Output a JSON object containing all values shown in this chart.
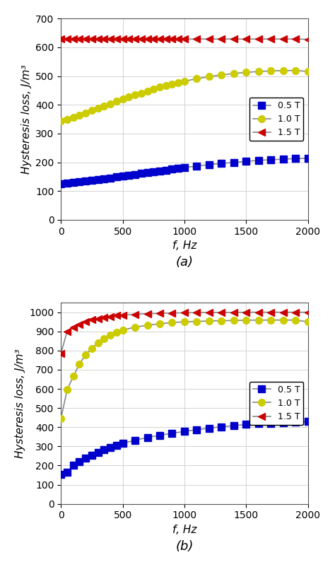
{
  "subplot_a": {
    "title": "(a)",
    "ylabel": "Hysteresis loss, J/m³",
    "xlabel": "f, Hz",
    "ylim": [
      0,
      700
    ],
    "xlim": [
      0,
      2000
    ],
    "yticks": [
      0,
      100,
      200,
      300,
      400,
      500,
      600,
      700
    ],
    "xticks": [
      0,
      500,
      1000,
      1500,
      2000
    ],
    "series": [
      {
        "label": "0.5 T",
        "color": "#0000cc",
        "marker": "s",
        "x": [
          0,
          50,
          100,
          150,
          200,
          250,
          300,
          350,
          400,
          450,
          500,
          550,
          600,
          650,
          700,
          750,
          800,
          850,
          900,
          950,
          1000,
          1100,
          1200,
          1300,
          1400,
          1500,
          1600,
          1700,
          1800,
          1900,
          2000
        ],
        "y": [
          125,
          128,
          130,
          132,
          135,
          137,
          140,
          143,
          146,
          149,
          152,
          155,
          158,
          161,
          164,
          167,
          170,
          173,
          176,
          179,
          182,
          187,
          192,
          196,
          200,
          203,
          207,
          209,
          211,
          213,
          214
        ]
      },
      {
        "label": "1.0 T",
        "color": "#cccc00",
        "marker": "o",
        "x": [
          0,
          50,
          100,
          150,
          200,
          250,
          300,
          350,
          400,
          450,
          500,
          550,
          600,
          650,
          700,
          750,
          800,
          850,
          900,
          950,
          1000,
          1100,
          1200,
          1300,
          1400,
          1500,
          1600,
          1700,
          1800,
          1900,
          2000
        ],
        "y": [
          345,
          350,
          357,
          364,
          372,
          380,
          388,
          396,
          404,
          412,
          420,
          427,
          434,
          441,
          448,
          455,
          461,
          467,
          472,
          477,
          482,
          491,
          498,
          504,
          509,
          513,
          516,
          518,
          519,
          520,
          516
        ]
      },
      {
        "label": "1.5 T",
        "color": "#cc0000",
        "marker": "<",
        "x": [
          0,
          50,
          100,
          150,
          200,
          250,
          300,
          350,
          400,
          450,
          500,
          550,
          600,
          650,
          700,
          750,
          800,
          850,
          900,
          950,
          1000,
          1100,
          1200,
          1300,
          1400,
          1500,
          1600,
          1700,
          1800,
          1900,
          2000
        ],
        "y": [
          630,
          630,
          630,
          629,
          629,
          629,
          629,
          629,
          629,
          629,
          629,
          629,
          629,
          629,
          629,
          629,
          629,
          629,
          629,
          629,
          629,
          629,
          629,
          629,
          629,
          629,
          629,
          629,
          629,
          629,
          628
        ]
      }
    ]
  },
  "subplot_b": {
    "title": "(b)",
    "ylabel": "Hysteresis loss, J/m³",
    "xlabel": "f, Hz",
    "ylim": [
      0,
      1050
    ],
    "xlim": [
      0,
      2000
    ],
    "yticks": [
      0,
      100,
      200,
      300,
      400,
      500,
      600,
      700,
      800,
      900,
      1000
    ],
    "xticks": [
      0,
      500,
      1000,
      1500,
      2000
    ],
    "series": [
      {
        "label": "0.5 T",
        "color": "#0000cc",
        "marker": "s",
        "x": [
          0,
          50,
          100,
          150,
          200,
          250,
          300,
          350,
          400,
          450,
          500,
          600,
          700,
          800,
          900,
          1000,
          1100,
          1200,
          1300,
          1400,
          1500,
          1600,
          1700,
          1800,
          1900,
          2000
        ],
        "y": [
          155,
          165,
          200,
          220,
          238,
          255,
          268,
          282,
          295,
          305,
          315,
          332,
          346,
          358,
          368,
          378,
          387,
          395,
          402,
          408,
          414,
          418,
          421,
          424,
          427,
          430
        ]
      },
      {
        "label": "1.0 T",
        "color": "#cccc00",
        "marker": "o",
        "x": [
          0,
          50,
          100,
          150,
          200,
          250,
          300,
          350,
          400,
          450,
          500,
          600,
          700,
          800,
          900,
          1000,
          1100,
          1200,
          1300,
          1400,
          1500,
          1600,
          1700,
          1800,
          1900,
          2000
        ],
        "y": [
          445,
          595,
          665,
          730,
          778,
          812,
          840,
          862,
          880,
          895,
          907,
          922,
          932,
          940,
          946,
          950,
          952,
          954,
          956,
          957,
          958,
          959,
          959,
          959,
          959,
          950
        ]
      },
      {
        "label": "1.5 T",
        "color": "#cc0000",
        "marker": "<",
        "x": [
          0,
          50,
          100,
          150,
          200,
          250,
          300,
          350,
          400,
          450,
          500,
          600,
          700,
          800,
          900,
          1000,
          1100,
          1200,
          1300,
          1400,
          1500,
          1600,
          1700,
          1800,
          1900,
          2000
        ],
        "y": [
          785,
          900,
          920,
          937,
          950,
          960,
          967,
          973,
          978,
          982,
          985,
          989,
          992,
          994,
          996,
          997,
          998,
          999,
          999,
          999,
          1000,
          1000,
          1000,
          1000,
          1000,
          1000
        ]
      }
    ]
  },
  "line_color": "#888888",
  "marker_size": 7,
  "linewidth": 1.2,
  "legend_fontsize": 9,
  "axis_label_fontsize": 11,
  "tick_fontsize": 10,
  "title_fontsize": 13
}
